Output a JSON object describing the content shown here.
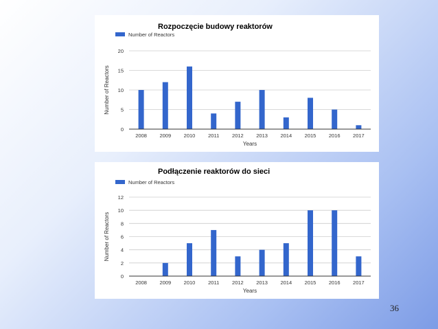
{
  "slide_number": "36",
  "colors": {
    "bar": "#3366cc",
    "grid": "#cccccc",
    "axis": "#333333"
  },
  "chart_data": [
    {
      "type": "bar",
      "title": "Rozpoczęcie budowy reaktorów",
      "xlabel": "Years",
      "ylabel": "Number of Reactors",
      "legend": "top-left",
      "grid": true,
      "categories": [
        "2008",
        "2009",
        "2010",
        "2011",
        "2012",
        "2013",
        "2014",
        "2015",
        "2016",
        "2017"
      ],
      "series": [
        {
          "name": "Number of Reactors",
          "values": [
            10,
            12,
            16,
            4,
            7,
            10,
            3,
            8,
            5,
            1
          ]
        }
      ],
      "ylim": [
        0,
        20
      ],
      "yticks": [
        0,
        5,
        10,
        15,
        20
      ]
    },
    {
      "type": "bar",
      "title": "Podłączenie reaktorów do sieci",
      "xlabel": "Years",
      "ylabel": "Number of Reactors",
      "legend": "top-left",
      "grid": true,
      "categories": [
        "2008",
        "2009",
        "2010",
        "2011",
        "2012",
        "2013",
        "2014",
        "2015",
        "2016",
        "2017"
      ],
      "series": [
        {
          "name": "Number of Reactors",
          "values": [
            0,
            2,
            5,
            7,
            3,
            4,
            5,
            10,
            10,
            3
          ]
        }
      ],
      "ylim": [
        0,
        12
      ],
      "yticks": [
        0,
        2,
        4,
        6,
        8,
        10,
        12
      ]
    }
  ]
}
